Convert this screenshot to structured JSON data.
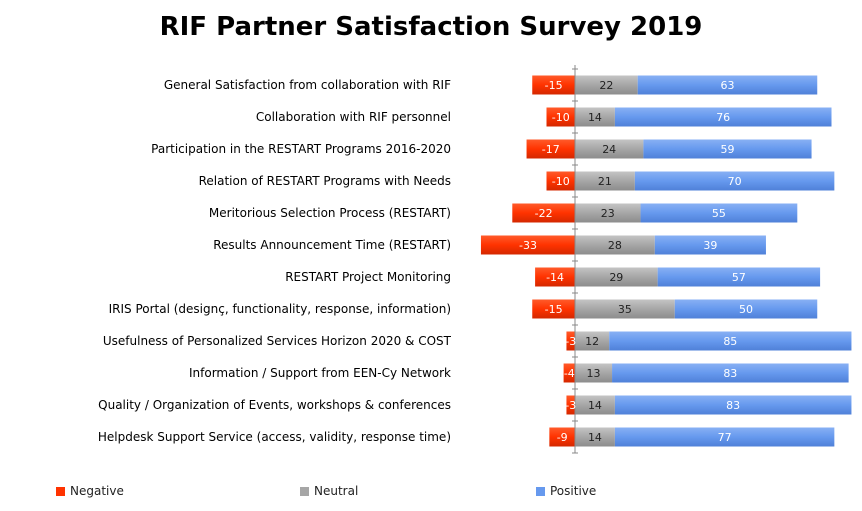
{
  "chart_data": {
    "type": "bar",
    "orientation": "horizontal",
    "stacked": "diverging",
    "title": "RIF Partner Satisfaction Survey 2019",
    "categories": [
      "General Satisfaction from collaboration with RIF",
      "Collaboration with RIF personnel",
      "Participation in the RESTART Programs 2016-2020",
      "Relation of RESTART Programs with Needs",
      "Meritorious Selection Process (RESTART)",
      "Results Announcement Time (RESTART)",
      "RESTART Project Monitoring",
      "IRIS Portal (designç, functionality, response, information)",
      "Usefulness of Personalized Services Horizon 2020 & COST",
      "Information / Support from EEN-Cy Network",
      "Quality / Organization of Events, workshops & conferences",
      "Helpdesk Support Service (access, validity, response time)"
    ],
    "series": [
      {
        "name": "Negative",
        "color": "#ff3300",
        "values": [
          -15,
          -10,
          -17,
          -10,
          -22,
          -33,
          -14,
          -15,
          -3,
          -4,
          -3,
          -9
        ]
      },
      {
        "name": "Neutral",
        "color": "#a6a6a6",
        "values": [
          22,
          14,
          24,
          21,
          23,
          28,
          29,
          35,
          12,
          13,
          14,
          14
        ]
      },
      {
        "name": "Positive",
        "color": "#6699ee",
        "values": [
          63,
          76,
          59,
          70,
          55,
          39,
          57,
          50,
          85,
          83,
          83,
          77
        ]
      }
    ],
    "legend_position": "bottom",
    "grid": false
  }
}
